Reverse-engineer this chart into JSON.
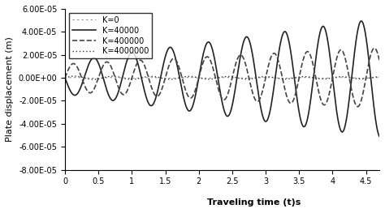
{
  "title": "",
  "xlabel": "Traveling time (t)s",
  "ylabel": "Plate displacement (m)",
  "xlim": [
    0,
    4.7
  ],
  "ylim": [
    -8e-05,
    6e-05
  ],
  "xticks": [
    0,
    0.5,
    1,
    1.5,
    2,
    2.5,
    3,
    3.5,
    4,
    4.5
  ],
  "yticks": [
    -8e-05,
    -6e-05,
    -4e-05,
    -2e-05,
    0.0,
    2e-05,
    4e-05,
    6e-05
  ],
  "legend": [
    "K=0",
    "K=40000",
    "K=400000",
    "K=4000000"
  ],
  "background_color": "#ffffff",
  "legend_fontsize": 7,
  "axis_fontsize": 8,
  "tick_fontsize": 7
}
